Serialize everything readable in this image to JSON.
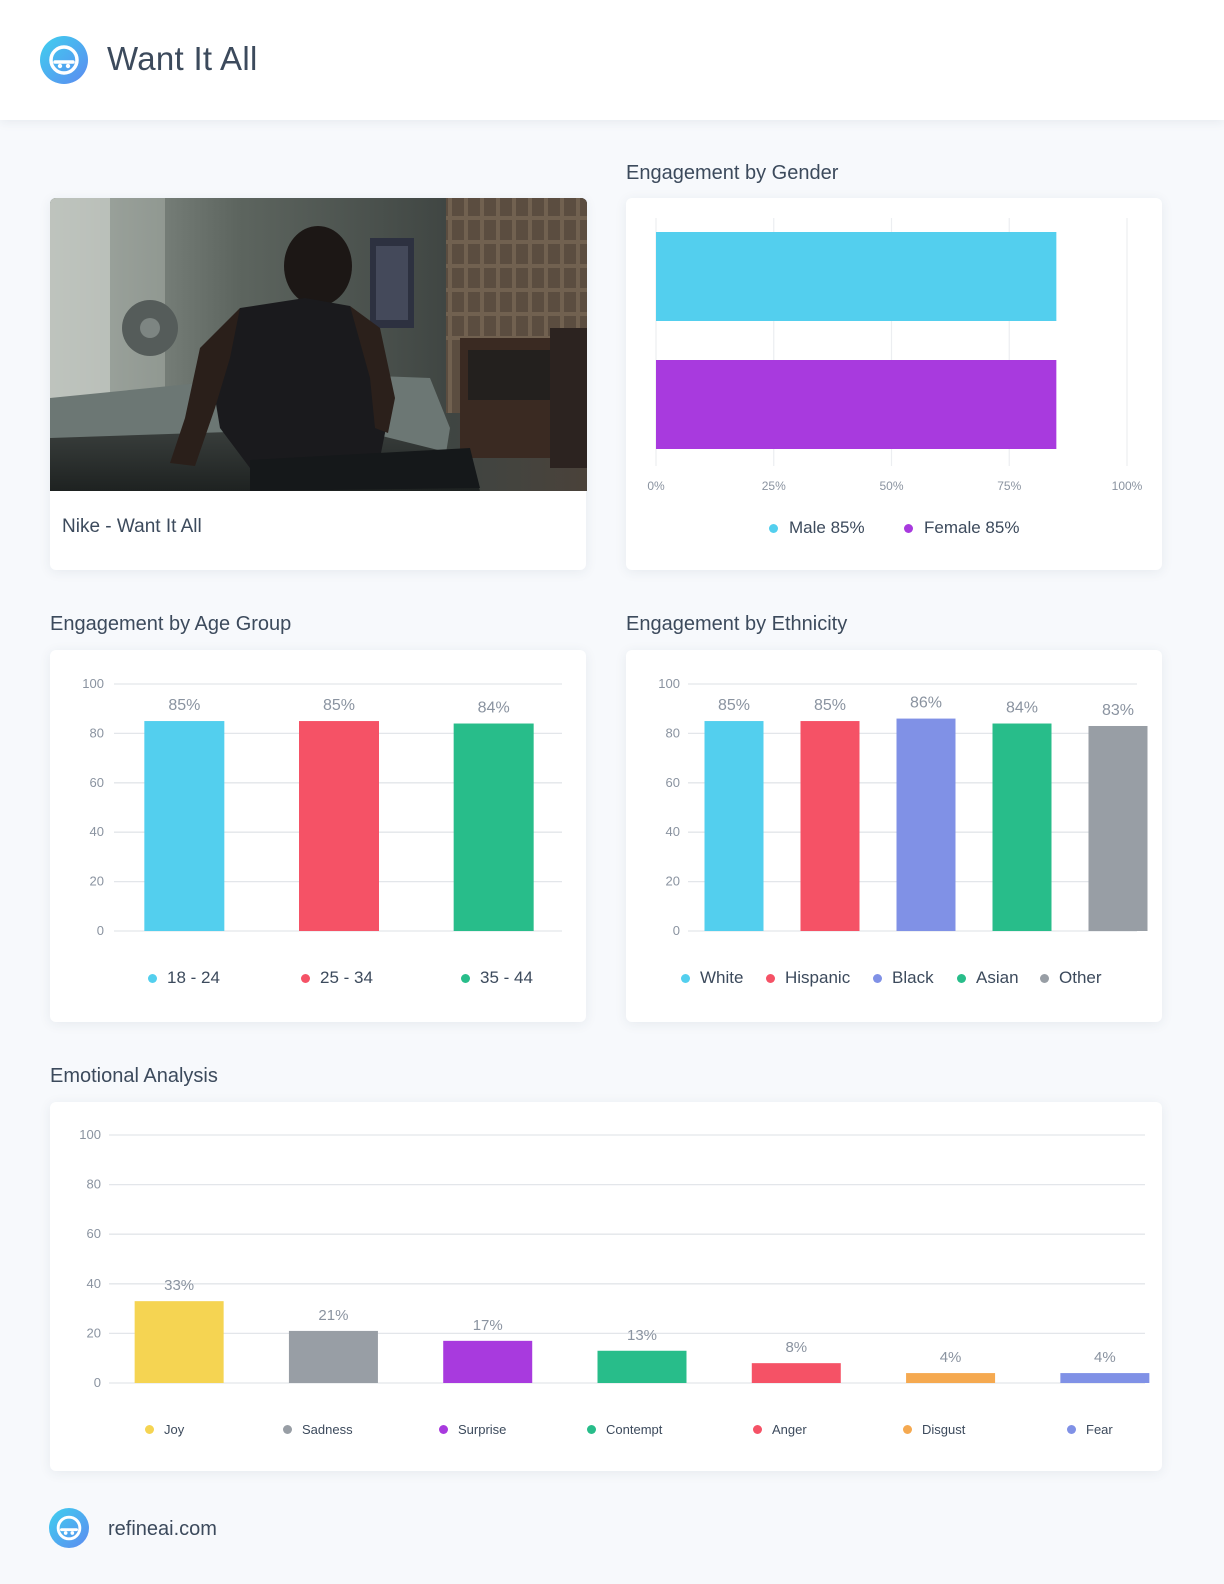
{
  "header": {
    "title": "Want It All"
  },
  "video": {
    "caption": "Nike - Want It All"
  },
  "sections": {
    "gender": "Engagement by Gender",
    "age": "Engagement by Age Group",
    "ethnicity": "Engagement by Ethnicity",
    "emotion": "Emotional Analysis"
  },
  "footer": {
    "site": "refineai.com"
  },
  "icons": {
    "logo": "refineai-face-icon"
  },
  "chart_data": [
    {
      "id": "gender",
      "type": "bar",
      "orientation": "horizontal",
      "xlim": [
        0,
        100
      ],
      "x_ticks": [
        "0%",
        "25%",
        "50%",
        "75%",
        "100%"
      ],
      "categories": [
        "Male",
        "Female"
      ],
      "values": [
        85,
        85
      ],
      "colors": [
        "#53cfee",
        "#a83ade"
      ],
      "legend": [
        "Male 85%",
        "Female 85%"
      ],
      "legend_position": "bottom",
      "grid": true
    },
    {
      "id": "age",
      "type": "bar",
      "ylim": [
        0,
        100
      ],
      "y_ticks": [
        "0",
        "20",
        "40",
        "60",
        "80",
        "100"
      ],
      "categories": [
        "18 - 24",
        "25 - 34",
        "35 - 44"
      ],
      "values": [
        85,
        85,
        84
      ],
      "labels": [
        "85%",
        "85%",
        "84%"
      ],
      "colors": [
        "#53cfee",
        "#f55266",
        "#28bd8a"
      ],
      "legend_position": "bottom",
      "grid": true
    },
    {
      "id": "ethnicity",
      "type": "bar",
      "ylim": [
        0,
        100
      ],
      "y_ticks": [
        "0",
        "20",
        "40",
        "60",
        "80",
        "100"
      ],
      "categories": [
        "White",
        "Hispanic",
        "Black",
        "Asian",
        "Other"
      ],
      "values": [
        85,
        85,
        86,
        84,
        83
      ],
      "labels": [
        "85%",
        "85%",
        "86%",
        "84%",
        "83%"
      ],
      "colors": [
        "#53cfee",
        "#f55266",
        "#8091e6",
        "#28bd8a",
        "#989ea5"
      ],
      "legend_position": "bottom",
      "grid": true
    },
    {
      "id": "emotion",
      "type": "bar",
      "ylim": [
        0,
        100
      ],
      "y_ticks": [
        "0",
        "20",
        "40",
        "60",
        "80",
        "100"
      ],
      "categories": [
        "Joy",
        "Sadness",
        "Surprise",
        "Contempt",
        "Anger",
        "Disgust",
        "Fear"
      ],
      "values": [
        33,
        21,
        17,
        13,
        8,
        4,
        4
      ],
      "labels": [
        "33%",
        "21%",
        "17%",
        "13%",
        "8%",
        "4%",
        "4%"
      ],
      "colors": [
        "#f5d452",
        "#989ea5",
        "#a83ade",
        "#28bd8a",
        "#f55266",
        "#f5a950",
        "#8091e6"
      ],
      "legend_position": "bottom",
      "grid": true
    }
  ]
}
